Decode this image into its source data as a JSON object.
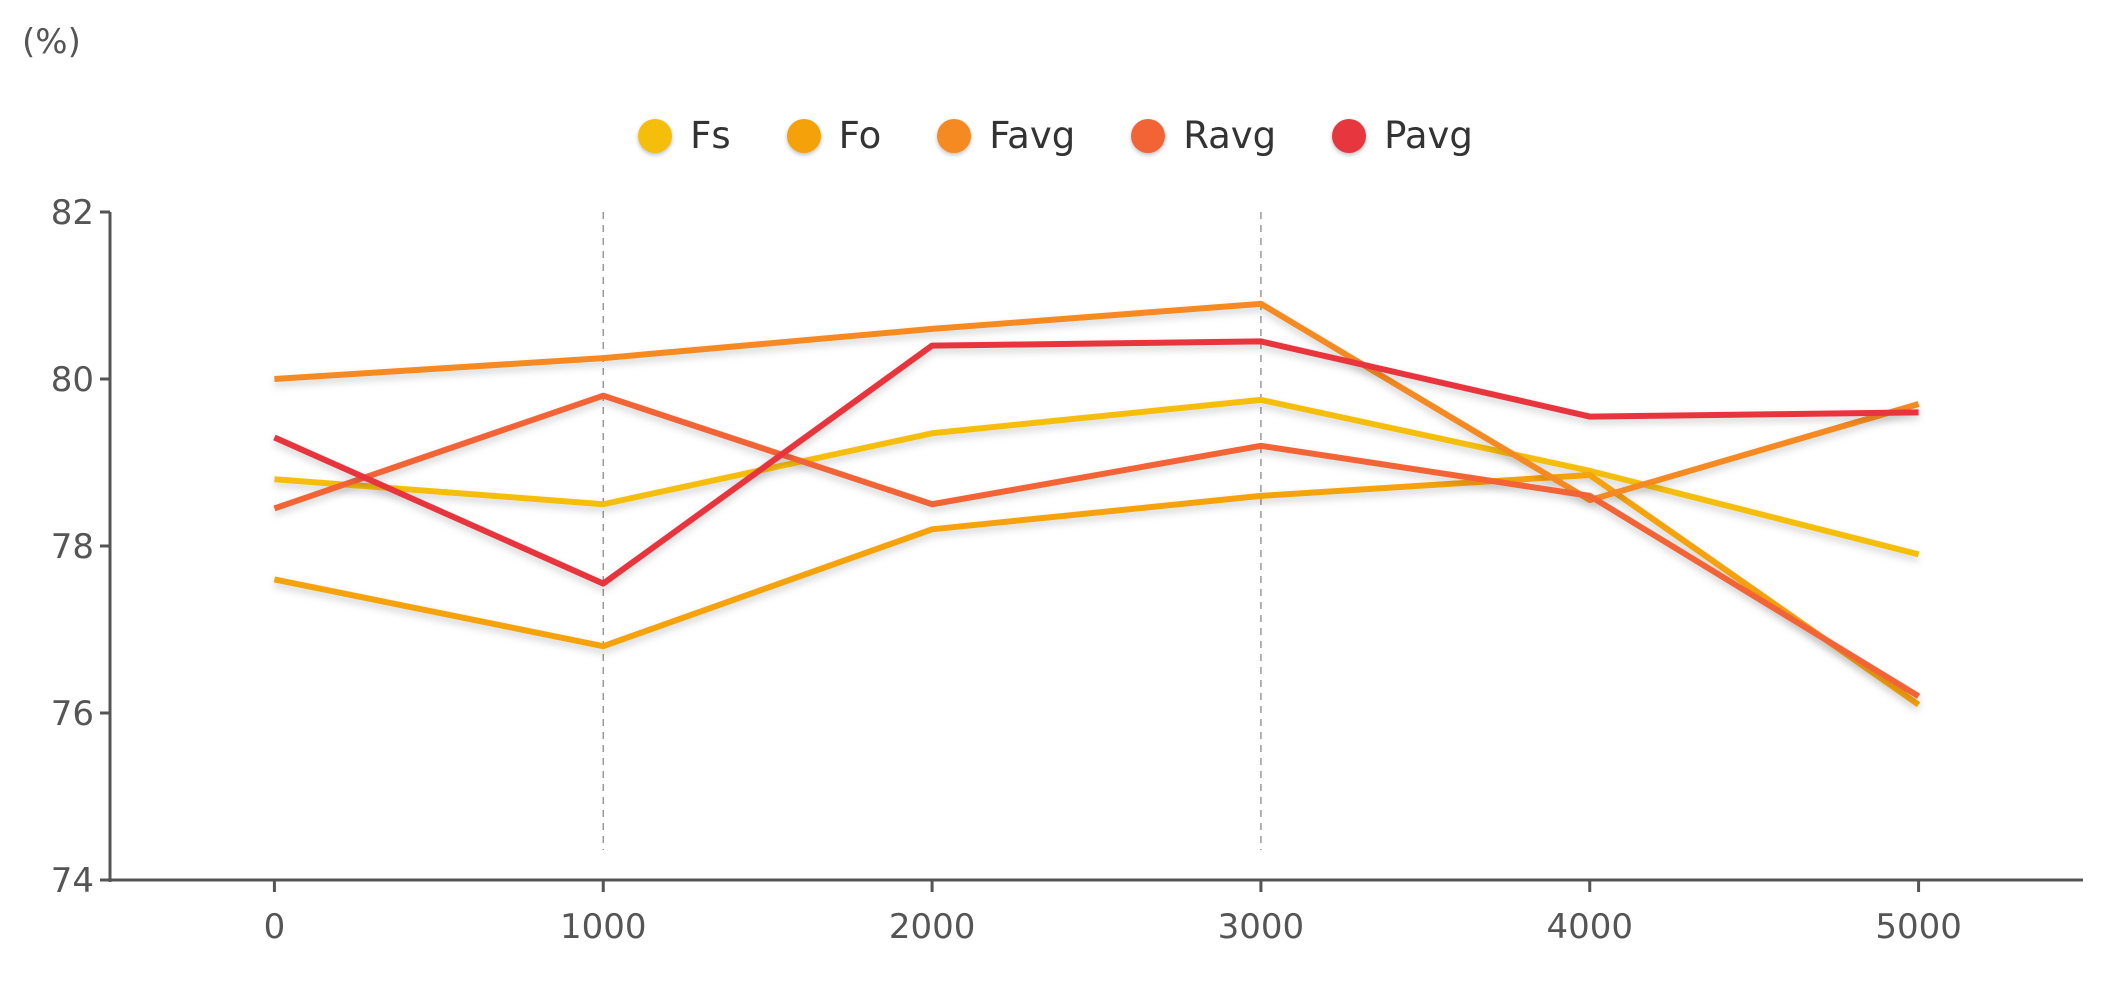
{
  "chart_data": {
    "type": "line",
    "unit_label": "(%)",
    "x": [
      0,
      1000,
      2000,
      3000,
      4000,
      5000
    ],
    "x_ticks": [
      "0",
      "1000",
      "2000",
      "3000",
      "4000",
      "5000"
    ],
    "y_ticks": [
      "74",
      "76",
      "78",
      "80",
      "82"
    ],
    "ylim": [
      74,
      82
    ],
    "xlim": [
      -500,
      5500
    ],
    "vertical_guides": [
      1000,
      3000
    ],
    "legend_position": "top-center",
    "series": [
      {
        "name": "Fs",
        "color": "#F5BE0B",
        "values": [
          78.8,
          78.5,
          79.35,
          79.75,
          78.9,
          77.9
        ]
      },
      {
        "name": "Fo",
        "color": "#F5A20A",
        "values": [
          77.6,
          76.8,
          78.2,
          78.6,
          78.85,
          76.1
        ]
      },
      {
        "name": "Favg",
        "color": "#F58A22",
        "values": [
          80.0,
          80.25,
          80.6,
          80.9,
          78.55,
          79.7
        ]
      },
      {
        "name": "Ravg",
        "color": "#F26436",
        "values": [
          78.45,
          79.8,
          78.5,
          79.2,
          78.6,
          76.2
        ]
      },
      {
        "name": "Pavg",
        "color": "#E8363E",
        "values": [
          79.3,
          77.55,
          80.4,
          80.45,
          79.55,
          79.6
        ]
      }
    ]
  }
}
